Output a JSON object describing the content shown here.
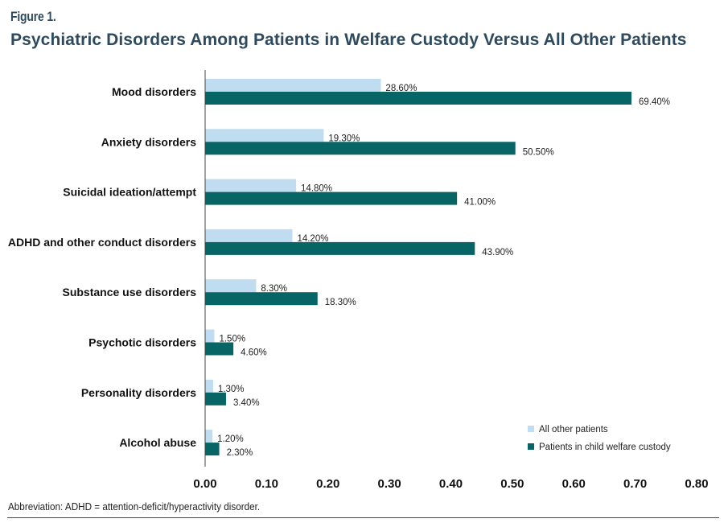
{
  "figure": {
    "label": "Figure 1.",
    "title": "Psychiatric Disorders Among Patients in Welfare Custody Versus All Other Patients",
    "footnote": "Abbreviation: ADHD = attention-deficit/hyperactivity disorder."
  },
  "chart_data": {
    "type": "bar",
    "orientation": "horizontal",
    "title": "Psychiatric Disorders Among Patients in Welfare Custody Versus All Other Patients",
    "xlabel": "",
    "ylabel": "",
    "xlim": [
      0,
      0.8
    ],
    "xticks": [
      "0.00",
      "0.10",
      "0.20",
      "0.30",
      "0.40",
      "0.50",
      "0.60",
      "0.70",
      "0.80"
    ],
    "xtick_values": [
      0,
      0.1,
      0.2,
      0.3,
      0.4,
      0.5,
      0.6,
      0.7,
      0.8
    ],
    "grid": false,
    "legend_position": "bottom-right",
    "categories": [
      "Mood disorders",
      "Anxiety disorders",
      "Suicidal ideation/attempt",
      "ADHD and other conduct disorders",
      "Substance use disorders",
      "Psychotic disorders",
      "Personality disorders",
      "Alcohol abuse"
    ],
    "series": [
      {
        "name": "All other patients",
        "color": "#bfdcf0",
        "values": [
          0.286,
          0.193,
          0.148,
          0.142,
          0.083,
          0.015,
          0.013,
          0.012
        ],
        "labels": [
          "28.60%",
          "19.30%",
          "14.80%",
          "14.20%",
          "8.30%",
          "1.50%",
          "1.30%",
          "1.20%"
        ]
      },
      {
        "name": "Patients in child welfare custody",
        "color": "#076565",
        "values": [
          0.694,
          0.505,
          0.41,
          0.439,
          0.183,
          0.046,
          0.034,
          0.023
        ],
        "labels": [
          "69.40%",
          "50.50%",
          "41.00%",
          "43.90%",
          "18.30%",
          "4.60%",
          "3.40%",
          "2.30%"
        ]
      }
    ]
  }
}
